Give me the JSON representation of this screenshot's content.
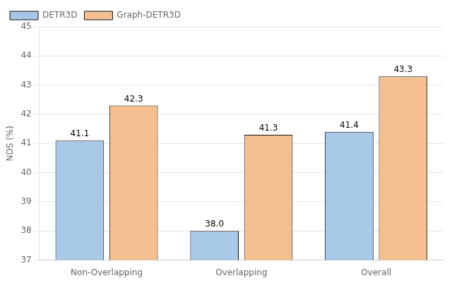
{
  "chart_data": {
    "type": "bar",
    "categories": [
      "Non-Overlapping",
      "Overlapping",
      "Overall"
    ],
    "series": [
      {
        "name": "DETR3D",
        "color": "#a8c8e8",
        "values": [
          41.1,
          38.0,
          41.4
        ],
        "value_labels": [
          "41.1",
          "38.0",
          "41.4"
        ]
      },
      {
        "name": "Graph-DETR3D",
        "color": "#f5c090",
        "values": [
          42.3,
          41.3,
          43.3
        ],
        "value_labels": [
          "42.3",
          "41.3",
          "43.3"
        ]
      }
    ],
    "ylabel": "NDS (%)",
    "ylim": [
      37,
      45
    ],
    "yticks": [
      37,
      38,
      39,
      40,
      41,
      42,
      43,
      44,
      45
    ],
    "grid": true,
    "legend": "upper left",
    "data_labels": true
  }
}
